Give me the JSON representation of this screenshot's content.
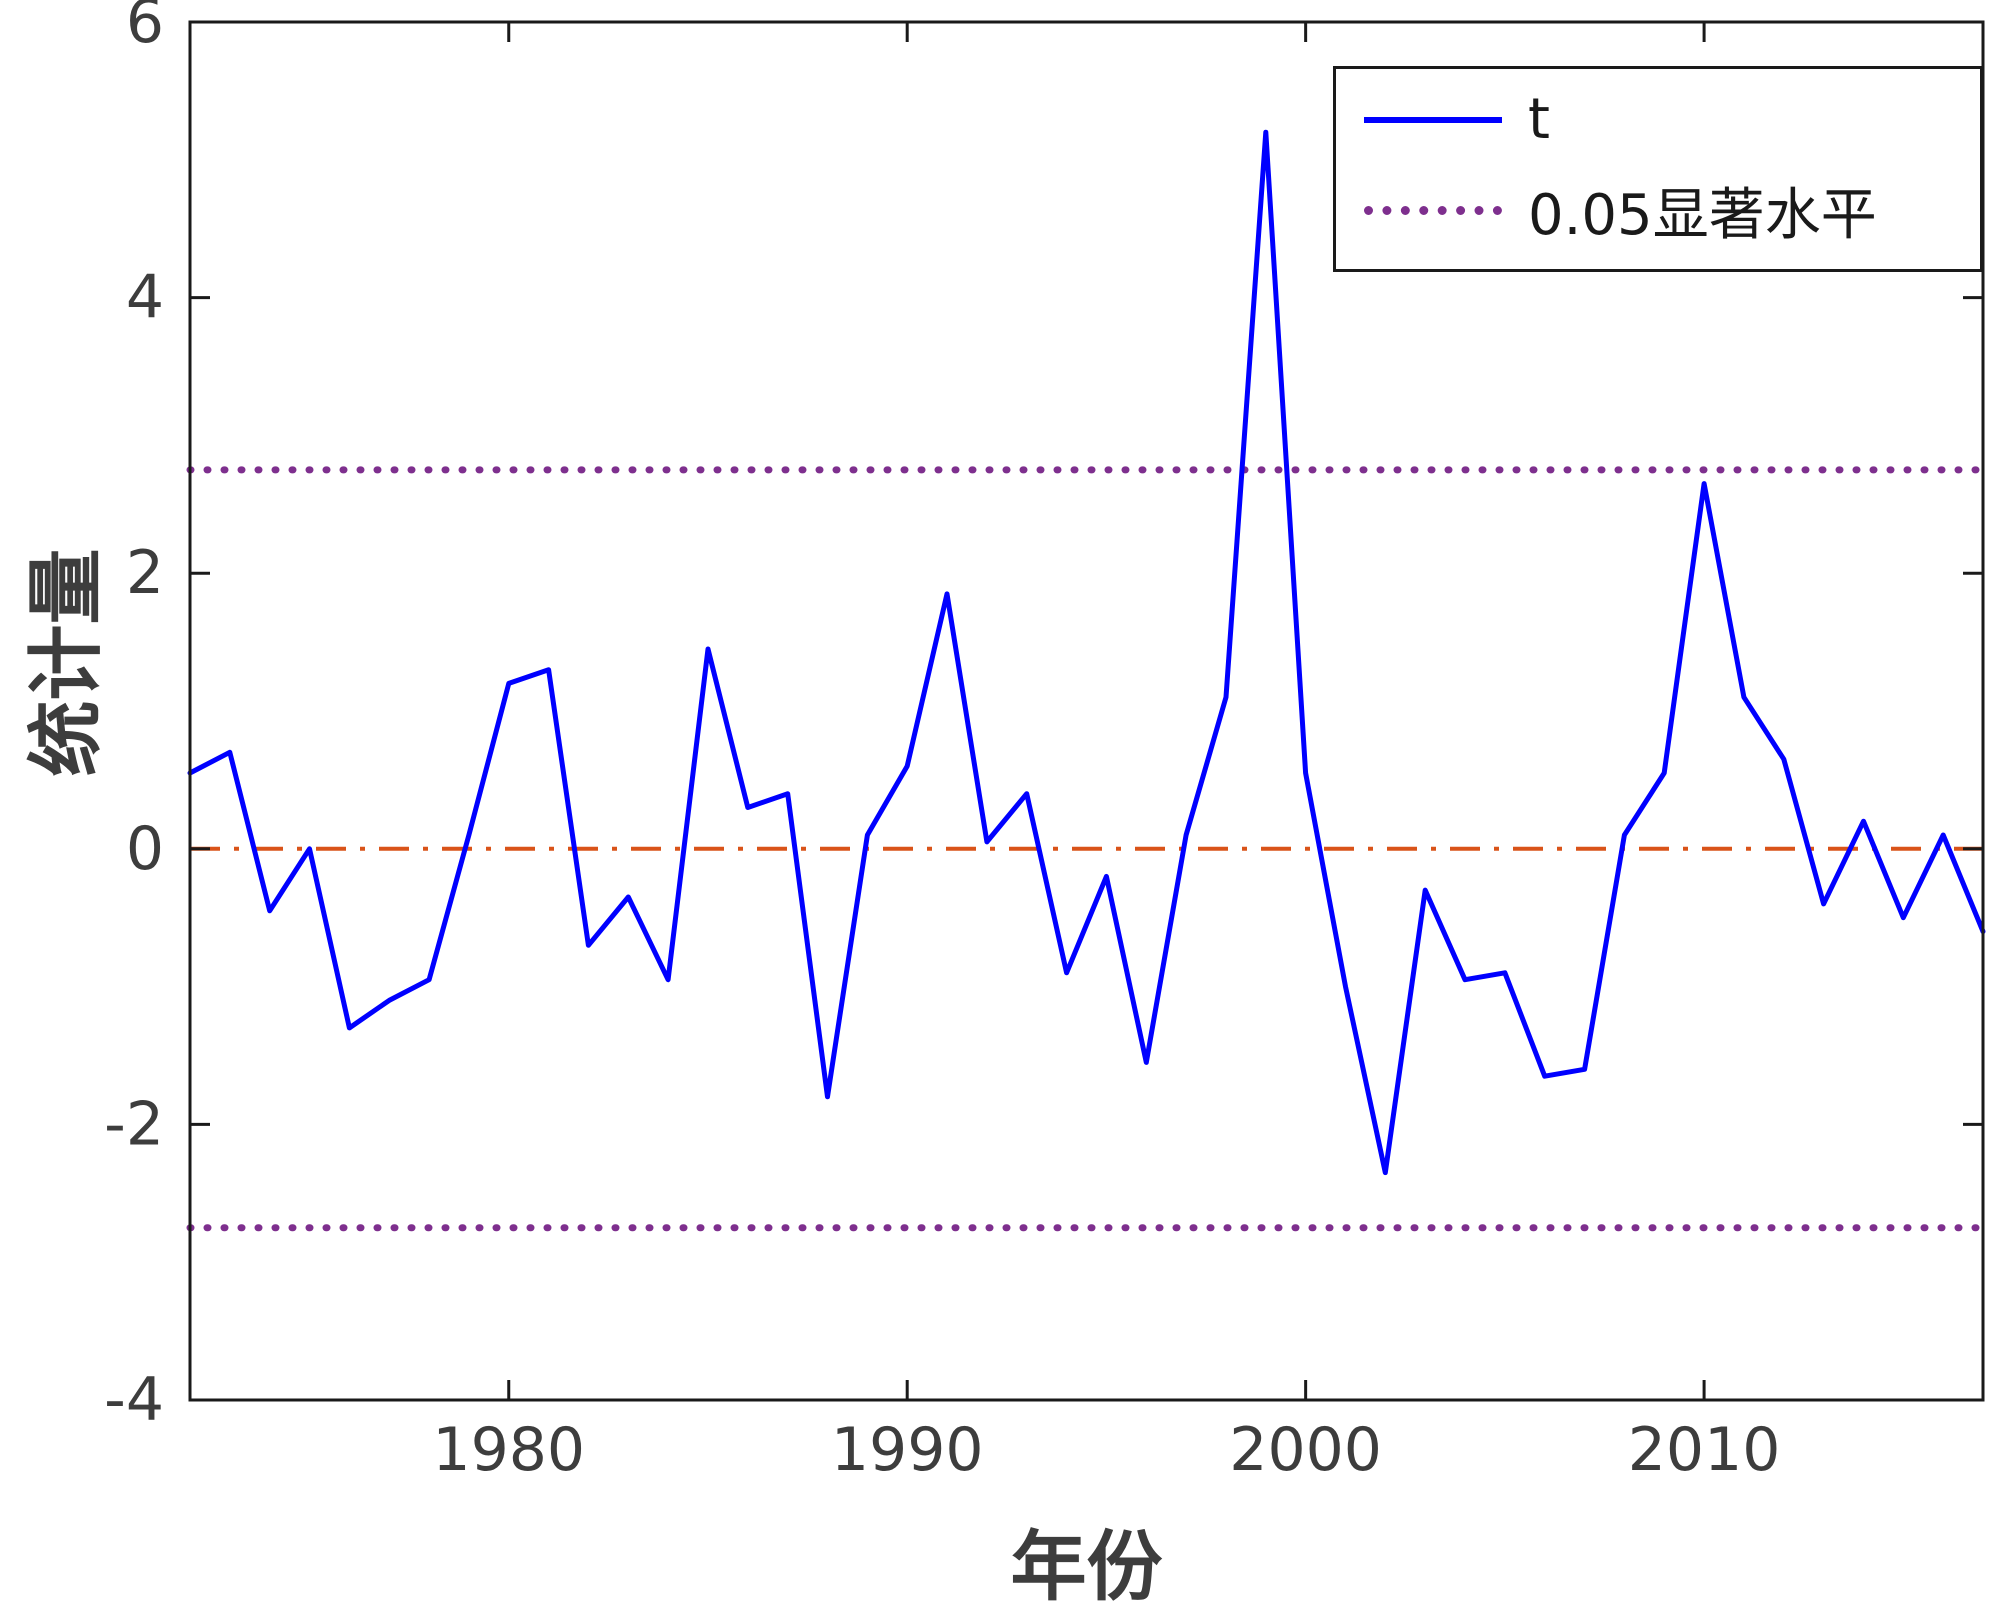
{
  "chart_data": {
    "type": "line",
    "title": "",
    "xlabel": "年份",
    "ylabel": "统计量",
    "xlim": [
      1972,
      2017
    ],
    "ylim": [
      -4,
      6
    ],
    "xticks": [
      1980,
      1990,
      2000,
      2010
    ],
    "yticks": [
      -4,
      -2,
      0,
      2,
      4,
      6
    ],
    "grid": false,
    "legend_position": "top-right",
    "x": [
      1972,
      1973,
      1974,
      1975,
      1976,
      1977,
      1978,
      1979,
      1980,
      1981,
      1982,
      1983,
      1984,
      1985,
      1986,
      1987,
      1988,
      1989,
      1990,
      1991,
      1992,
      1993,
      1994,
      1995,
      1996,
      1997,
      1998,
      1999,
      2000,
      2001,
      2002,
      2003,
      2004,
      2005,
      2006,
      2007,
      2008,
      2009,
      2010,
      2011,
      2012,
      2013,
      2014,
      2015,
      2016,
      2017
    ],
    "series": [
      {
        "name": "t",
        "color": "#0000ff",
        "style": "solid",
        "width": 5,
        "values": [
          0.55,
          0.7,
          -0.45,
          0.0,
          -1.3,
          -1.1,
          -0.95,
          0.1,
          1.2,
          1.3,
          -0.7,
          -0.35,
          -0.95,
          1.45,
          0.3,
          0.4,
          -1.8,
          0.1,
          0.6,
          1.85,
          0.05,
          0.4,
          -0.9,
          -0.2,
          -1.55,
          0.1,
          1.1,
          5.2,
          0.55,
          -1.0,
          -2.35,
          -0.3,
          -0.95,
          -0.9,
          -1.65,
          -1.6,
          0.1,
          0.55,
          2.65,
          1.1,
          0.65,
          -0.4,
          0.2,
          -0.5,
          0.1,
          -0.6
        ]
      }
    ],
    "reference_lines": [
      {
        "name": "significance-upper",
        "label": "0.05显著水平",
        "y": 2.75,
        "color": "#7E2F8E",
        "style": "dotted",
        "width": 7
      },
      {
        "name": "significance-lower",
        "label": "0.05显著水平",
        "y": -2.75,
        "color": "#7E2F8E",
        "style": "dotted",
        "width": 7
      },
      {
        "name": "zero-line",
        "label": "",
        "y": 0,
        "color": "#D95319",
        "style": "dashdot",
        "width": 4
      }
    ],
    "legend": [
      {
        "label": "t",
        "color": "#0000ff",
        "style": "solid"
      },
      {
        "label": "0.05显著水平",
        "color": "#7E2F8E",
        "style": "dotted"
      }
    ],
    "style": {
      "axis_color": "#1a1a1a",
      "tick_label_color": "#3d3d3d",
      "background": "#ffffff"
    }
  }
}
